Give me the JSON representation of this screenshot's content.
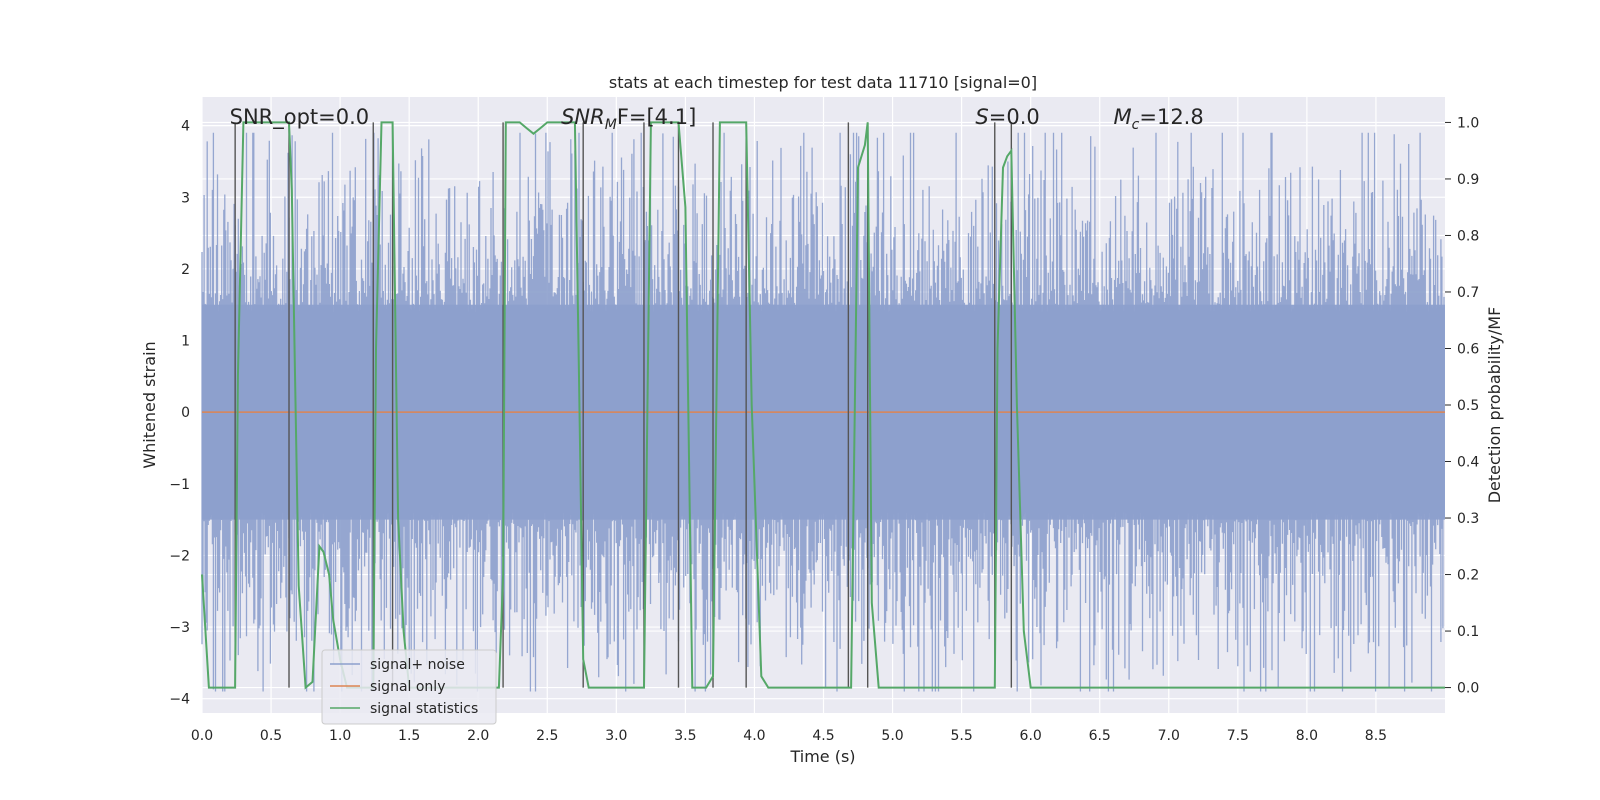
{
  "chart_data": {
    "type": "line",
    "title": "stats at each timestep for test data 11710 [signal=0]",
    "xlabel": "Time (s)",
    "ylabel_left": "Whitened strain",
    "ylabel_right": "Detection probability/MF",
    "xlim": [
      0.0,
      9.0
    ],
    "ylim_left": [
      -4.2,
      4.4
    ],
    "ylim_right": [
      -0.045,
      1.045
    ],
    "xticks": [
      0.0,
      0.5,
      1.0,
      1.5,
      2.0,
      2.5,
      3.0,
      3.5,
      4.0,
      4.5,
      5.0,
      5.5,
      6.0,
      6.5,
      7.0,
      7.5,
      8.0,
      8.5
    ],
    "xtick_labels": [
      "0.0",
      "0.5",
      "1.0",
      "1.5",
      "2.0",
      "2.5",
      "3.0",
      "3.5",
      "4.0",
      "4.5",
      "5.0",
      "5.5",
      "6.0",
      "6.5",
      "7.0",
      "7.5",
      "8.0",
      "8.5"
    ],
    "yticks_left": [
      -4,
      -3,
      -2,
      -1,
      0,
      1,
      2,
      3,
      4
    ],
    "ytick_labels_left": [
      "−4",
      "−3",
      "−2",
      "−1",
      "0",
      "1",
      "2",
      "3",
      "4"
    ],
    "yticks_right": [
      0.0,
      0.1,
      0.2,
      0.3,
      0.4,
      0.5,
      0.6,
      0.7,
      0.8,
      0.9,
      1.0
    ],
    "ytick_labels_right": [
      "0.0",
      "0.1",
      "0.2",
      "0.3",
      "0.4",
      "0.5",
      "0.6",
      "0.7",
      "0.8",
      "0.9",
      "1.0"
    ],
    "grid": true,
    "legend_placement": "lower-left",
    "annotations": {
      "snr_opt": {
        "text": "SNR_opt=0.0",
        "x": 0.2
      },
      "snr_mf": {
        "prefix": "SNR",
        "sub": "M",
        "rest": "F=[4.1]",
        "x": 2.6
      },
      "s": {
        "prefix": "S",
        "rest": "=0.0",
        "x": 5.6
      },
      "mc": {
        "prefix": "M",
        "sub": "c",
        "rest": "=12.8",
        "x": 6.6
      }
    },
    "series": [
      {
        "name": "signal+ noise",
        "axis": "left",
        "color": "#8c9fcc",
        "description_range": [
          -3.9,
          3.9
        ]
      },
      {
        "name": "signal only",
        "axis": "left",
        "color": "#dd8452",
        "value": 0.0
      },
      {
        "name": "signal statistics",
        "axis": "right",
        "color": "#55a868",
        "x": [
          0.0,
          0.05,
          0.1,
          0.15,
          0.2,
          0.24,
          0.26,
          0.3,
          0.35,
          0.4,
          0.45,
          0.5,
          0.55,
          0.6,
          0.63,
          0.65,
          0.7,
          0.75,
          0.8,
          0.85,
          0.88,
          0.92,
          0.95,
          1.0,
          1.05,
          1.1,
          1.15,
          1.2,
          1.24,
          1.26,
          1.3,
          1.35,
          1.38,
          1.42,
          1.46,
          1.5,
          1.55,
          1.6,
          1.65,
          1.7,
          1.75,
          1.8,
          1.85,
          1.9,
          1.95,
          2.0,
          2.05,
          2.1,
          2.15,
          2.18,
          2.2,
          2.25,
          2.3,
          2.35,
          2.4,
          2.45,
          2.5,
          2.55,
          2.6,
          2.65,
          2.7,
          2.73,
          2.76,
          2.8,
          2.85,
          2.9,
          2.95,
          3.0,
          3.05,
          3.1,
          3.15,
          3.2,
          3.25,
          3.3,
          3.35,
          3.4,
          3.45,
          3.5,
          3.55,
          3.6,
          3.65,
          3.7,
          3.75,
          3.8,
          3.85,
          3.9,
          3.94,
          3.98,
          4.05,
          4.1,
          4.15,
          4.2,
          4.3,
          4.4,
          4.5,
          4.6,
          4.65,
          4.7,
          4.75,
          4.8,
          4.82,
          4.85,
          4.9,
          4.95,
          5.0,
          5.1,
          5.2,
          5.3,
          5.4,
          5.5,
          5.55,
          5.6,
          5.65,
          5.7,
          5.74,
          5.76,
          5.8,
          5.83,
          5.86,
          5.9,
          5.95,
          6.0,
          6.05,
          6.1,
          6.2,
          6.5,
          7.0,
          7.5,
          8.0,
          8.4,
          8.5,
          9.0
        ],
        "y": [
          0.2,
          0.0,
          0.0,
          0.0,
          0.0,
          0.0,
          0.55,
          1.0,
          1.0,
          1.0,
          1.0,
          1.0,
          1.0,
          1.0,
          1.0,
          0.88,
          0.18,
          0.0,
          0.01,
          0.25,
          0.24,
          0.2,
          0.12,
          0.05,
          0.0,
          0.0,
          0.0,
          0.0,
          0.0,
          0.6,
          1.0,
          1.0,
          1.0,
          0.3,
          0.1,
          0.0,
          0.0,
          0.0,
          0.0,
          0.0,
          0.0,
          0.0,
          0.0,
          0.0,
          0.0,
          0.0,
          0.0,
          0.0,
          0.0,
          0.2,
          1.0,
          1.0,
          1.0,
          0.99,
          0.98,
          0.99,
          1.0,
          1.0,
          1.0,
          1.0,
          1.0,
          0.55,
          0.05,
          0.0,
          0.0,
          0.0,
          0.0,
          0.0,
          0.0,
          0.0,
          0.0,
          0.0,
          1.0,
          1.0,
          1.0,
          1.0,
          1.0,
          0.85,
          0.0,
          0.0,
          0.0,
          0.02,
          1.0,
          1.0,
          1.0,
          1.0,
          1.0,
          0.5,
          0.02,
          0.0,
          0.0,
          0.0,
          0.0,
          0.0,
          0.0,
          0.0,
          0.0,
          0.0,
          0.92,
          0.96,
          1.0,
          0.15,
          0.0,
          0.0,
          0.0,
          0.0,
          0.0,
          0.0,
          0.0,
          0.0,
          0.0,
          0.0,
          0.0,
          0.0,
          0.0,
          0.6,
          0.92,
          0.94,
          0.95,
          0.5,
          0.1,
          0.0,
          0.0,
          0.0,
          0.0,
          0.0,
          0.0,
          0.0,
          0.0,
          0.0,
          0.0,
          0.0
        ]
      }
    ],
    "vertical_markers": [
      0.24,
      0.63,
      1.24,
      1.38,
      2.18,
      2.76,
      3.2,
      3.45,
      3.7,
      3.94,
      4.68,
      4.82,
      5.74,
      5.86
    ]
  }
}
